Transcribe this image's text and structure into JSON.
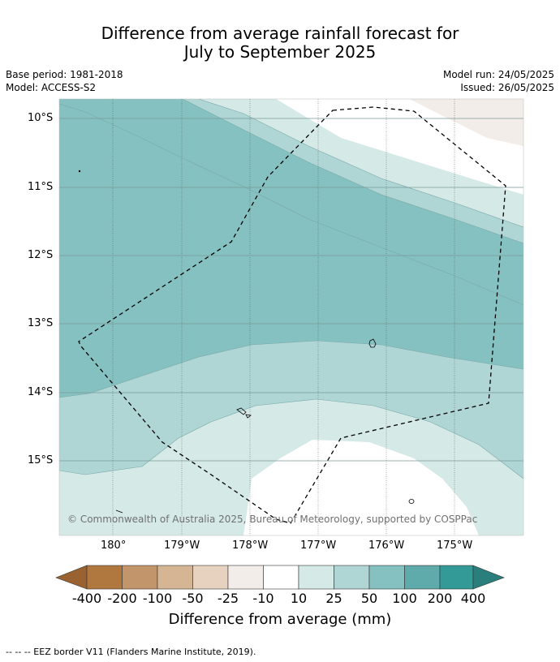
{
  "title_line1": "Difference from average rainfall forecast for",
  "title_line2": "July to September 2025",
  "base_period": "Base period: 1981-2018",
  "model": "Model: ACCESS-S2",
  "model_run": "Model run: 24/05/2025",
  "issued": "Issued: 26/05/2025",
  "copyright": "© Commonwealth of Australia 2025, Bureau of Meteorology, supported by COSPPac",
  "lat_labels": [
    "10°S",
    "11°S",
    "12°S",
    "13°S",
    "14°S",
    "15°S"
  ],
  "lon_labels": [
    "180°",
    "179°W",
    "178°W",
    "177°W",
    "176°W",
    "175°W"
  ],
  "colorbar": {
    "ticks": [
      "-400",
      "-200",
      "-100",
      "-50",
      "-25",
      "-10",
      "10",
      "25",
      "50",
      "100",
      "200",
      "400"
    ],
    "title": "Difference from average (mm)",
    "colors": [
      "#9a6230",
      "#b0783f",
      "#c3956a",
      "#d5b594",
      "#e6d2bf",
      "#f2ede8",
      "#ffffff",
      "#d5e9e7",
      "#afd5d5",
      "#85c1c0",
      "#5fabab",
      "#339a98",
      "#2a7e7c"
    ]
  },
  "footer": "--  --  -- EEZ border V11 (Flanders Marine Institute, 2019)."
}
